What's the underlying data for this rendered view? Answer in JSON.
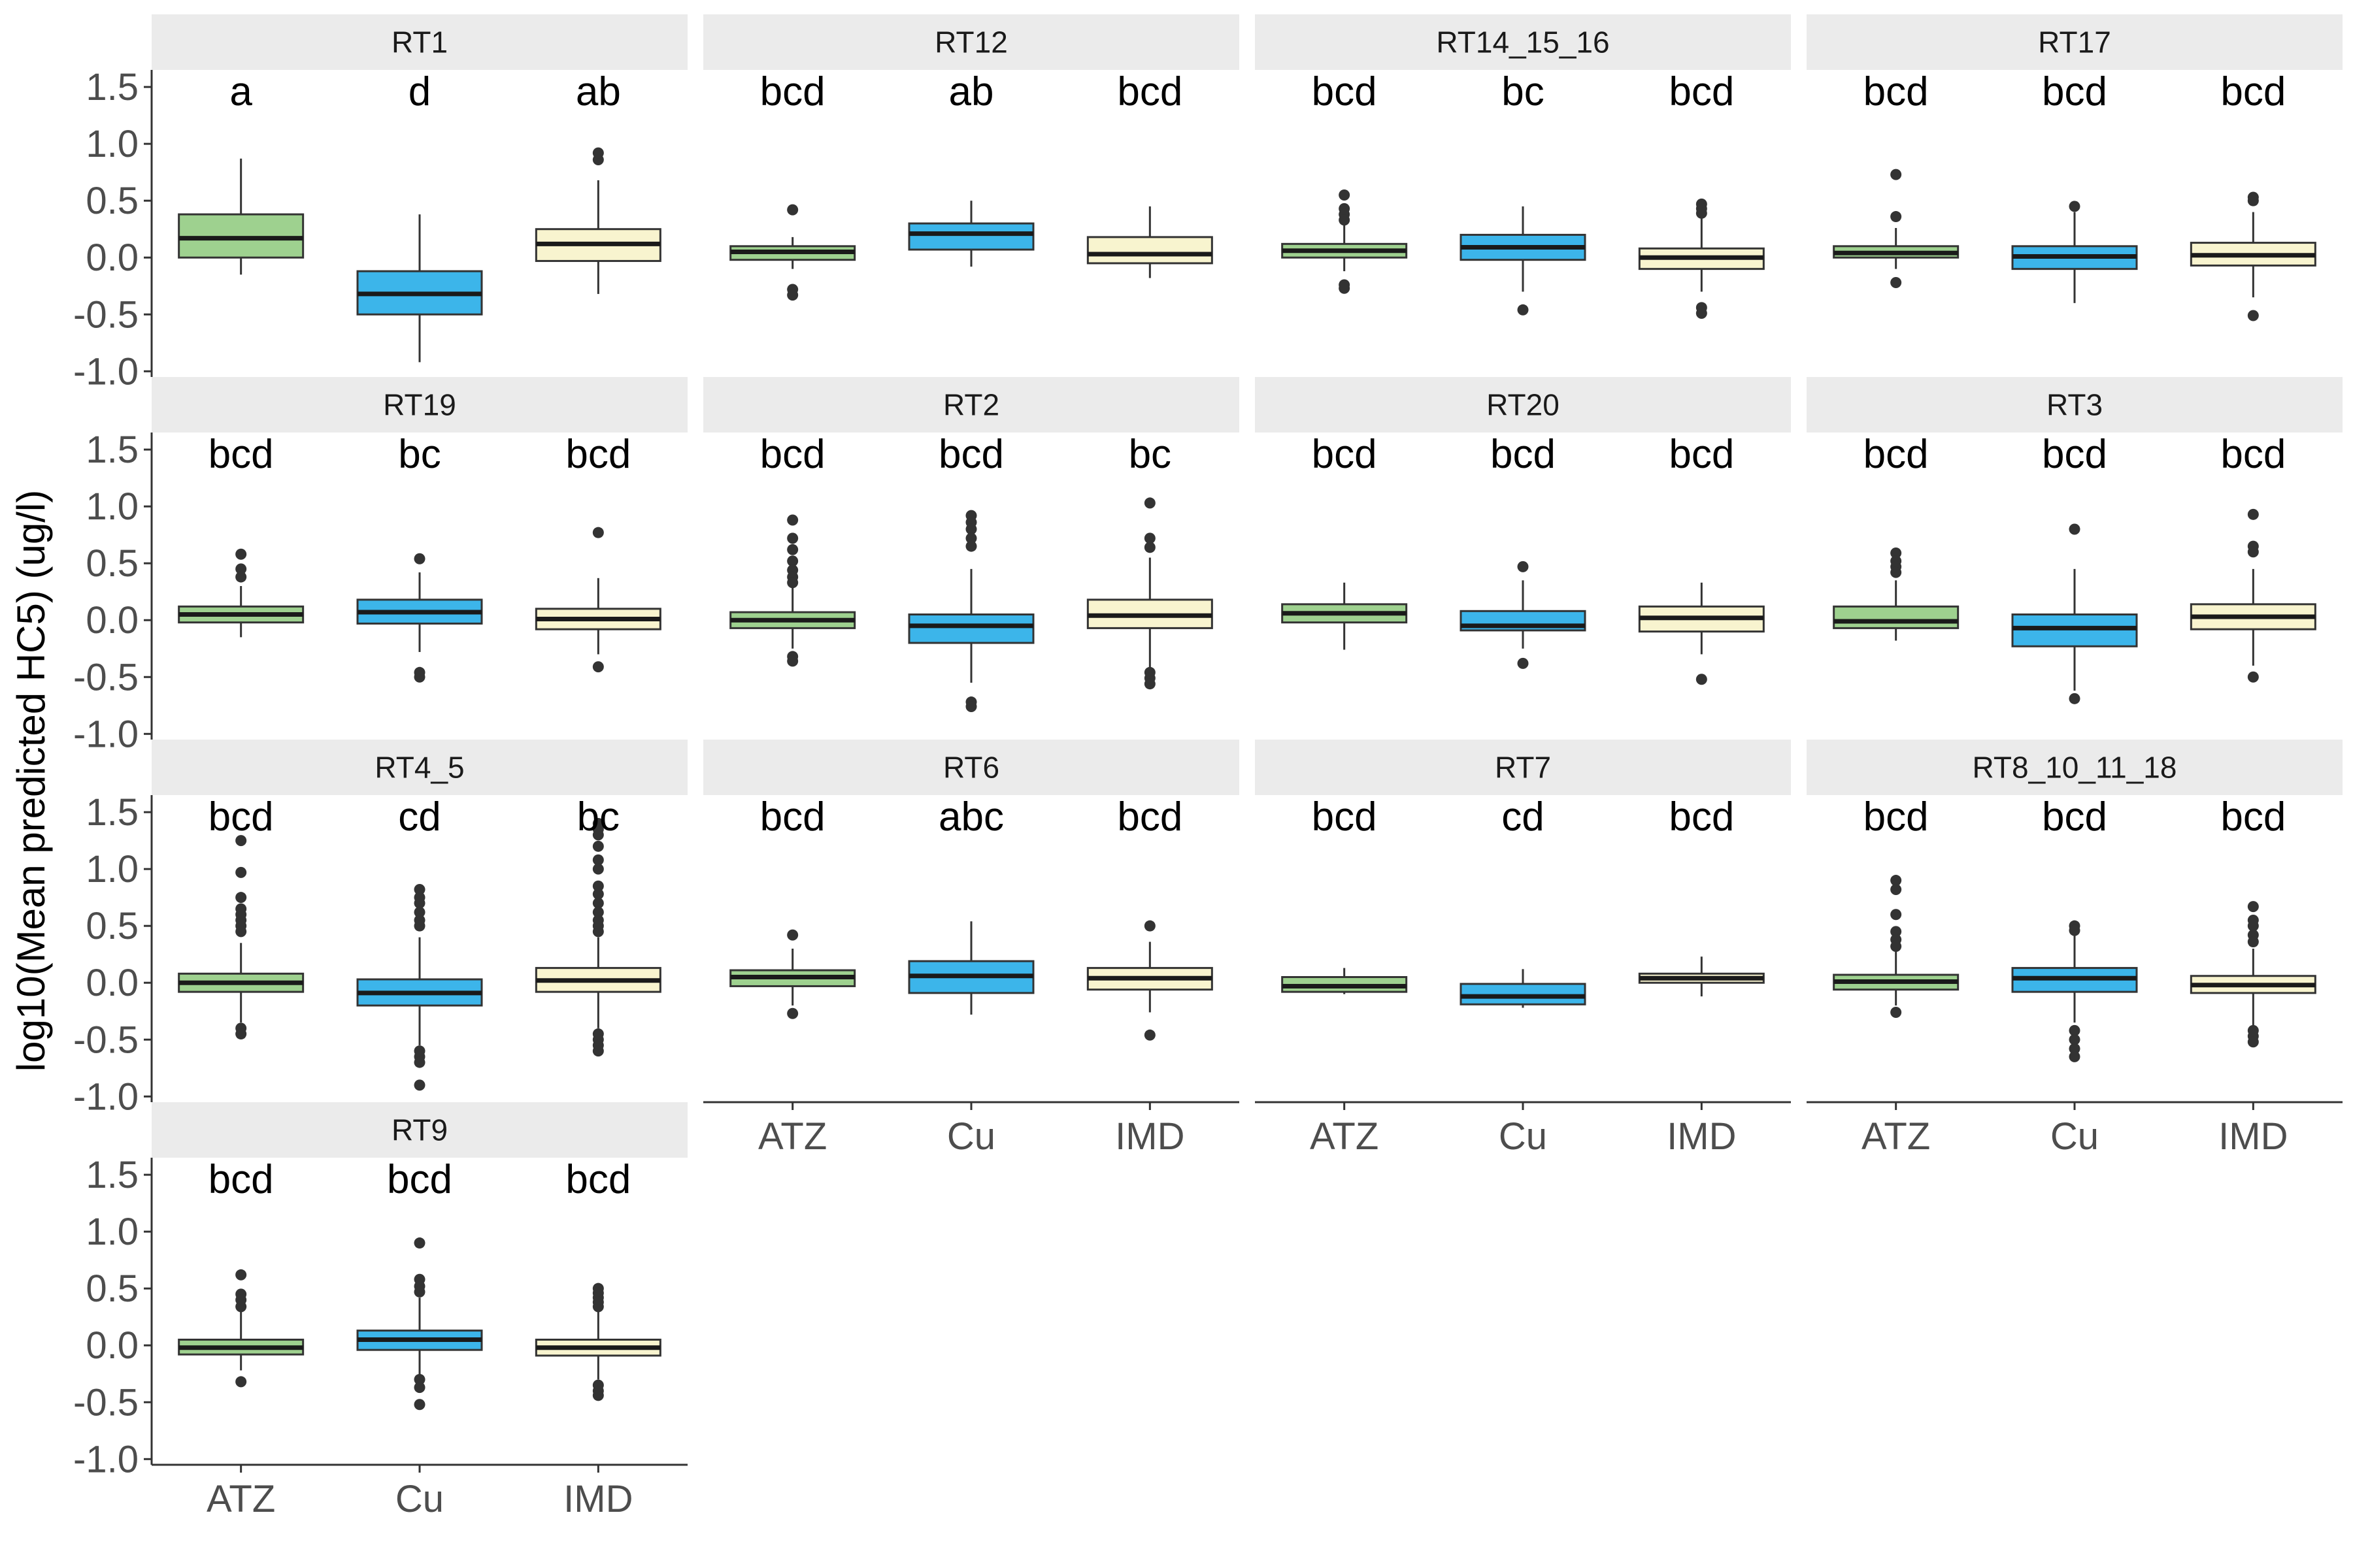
{
  "chart_data": {
    "type": "boxplot",
    "ylabel": "log10(Mean predicted HC5) (ug/l)",
    "xlabel": "",
    "categories": [
      "ATZ",
      "Cu",
      "IMD"
    ],
    "y_ticks": [
      "-1.0",
      "-0.5",
      "0.0",
      "0.5",
      "1.0",
      "1.5"
    ],
    "ylim": [
      -1.05,
      1.65
    ],
    "fill_colors": {
      "ATZ": "#9ed18f",
      "Cu": "#3cb5ea",
      "IMD": "#f8f4cf"
    },
    "panels": [
      {
        "name": "RT1",
        "letters": [
          "a",
          "d",
          "ab"
        ],
        "boxes": [
          {
            "group": "ATZ",
            "min": -0.15,
            "q1": 0.0,
            "median": 0.17,
            "q3": 0.38,
            "max": 0.87,
            "outliers": []
          },
          {
            "group": "Cu",
            "min": -0.92,
            "q1": -0.5,
            "median": -0.32,
            "q3": -0.12,
            "max": 0.38,
            "outliers": []
          },
          {
            "group": "IMD",
            "min": -0.32,
            "q1": -0.03,
            "median": 0.12,
            "q3": 0.25,
            "max": 0.68,
            "outliers": [
              0.86,
              0.92
            ]
          }
        ]
      },
      {
        "name": "RT12",
        "letters": [
          "bcd",
          "ab",
          "bcd"
        ],
        "boxes": [
          {
            "group": "ATZ",
            "min": -0.1,
            "q1": -0.02,
            "median": 0.05,
            "q3": 0.1,
            "max": 0.18,
            "outliers": [
              0.42,
              -0.28,
              -0.33
            ]
          },
          {
            "group": "Cu",
            "min": -0.08,
            "q1": 0.07,
            "median": 0.21,
            "q3": 0.3,
            "max": 0.5,
            "outliers": []
          },
          {
            "group": "IMD",
            "min": -0.18,
            "q1": -0.05,
            "median": 0.03,
            "q3": 0.18,
            "max": 0.45,
            "outliers": []
          }
        ]
      },
      {
        "name": "RT14_15_16",
        "letters": [
          "bcd",
          "bc",
          "bcd"
        ],
        "boxes": [
          {
            "group": "ATZ",
            "min": -0.12,
            "q1": 0.0,
            "median": 0.06,
            "q3": 0.12,
            "max": 0.3,
            "outliers": [
              0.55,
              0.43,
              0.38,
              0.33,
              -0.24,
              -0.27
            ]
          },
          {
            "group": "Cu",
            "min": -0.3,
            "q1": -0.02,
            "median": 0.09,
            "q3": 0.2,
            "max": 0.45,
            "outliers": [
              -0.46
            ]
          },
          {
            "group": "IMD",
            "min": -0.3,
            "q1": -0.1,
            "median": 0.0,
            "q3": 0.08,
            "max": 0.35,
            "outliers": [
              0.47,
              0.43,
              0.39,
              -0.44,
              -0.49
            ]
          }
        ]
      },
      {
        "name": "RT17",
        "letters": [
          "bcd",
          "bcd",
          "bcd"
        ],
        "boxes": [
          {
            "group": "ATZ",
            "min": -0.1,
            "q1": 0.0,
            "median": 0.04,
            "q3": 0.1,
            "max": 0.26,
            "outliers": [
              0.73,
              0.36,
              -0.22
            ]
          },
          {
            "group": "Cu",
            "min": -0.4,
            "q1": -0.1,
            "median": 0.01,
            "q3": 0.1,
            "max": 0.4,
            "outliers": [
              0.45
            ]
          },
          {
            "group": "IMD",
            "min": -0.35,
            "q1": -0.07,
            "median": 0.02,
            "q3": 0.13,
            "max": 0.4,
            "outliers": [
              0.53,
              0.5,
              -0.51
            ]
          }
        ]
      },
      {
        "name": "RT19",
        "letters": [
          "bcd",
          "bc",
          "bcd"
        ],
        "boxes": [
          {
            "group": "ATZ",
            "min": -0.15,
            "q1": -0.02,
            "median": 0.05,
            "q3": 0.12,
            "max": 0.3,
            "outliers": [
              0.58,
              0.45,
              0.38
            ]
          },
          {
            "group": "Cu",
            "min": -0.28,
            "q1": -0.03,
            "median": 0.07,
            "q3": 0.18,
            "max": 0.42,
            "outliers": [
              0.54,
              -0.46,
              -0.5
            ]
          },
          {
            "group": "IMD",
            "min": -0.3,
            "q1": -0.08,
            "median": 0.01,
            "q3": 0.1,
            "max": 0.37,
            "outliers": [
              0.77,
              -0.41
            ]
          }
        ]
      },
      {
        "name": "RT2",
        "letters": [
          "bcd",
          "bcd",
          "bc"
        ],
        "boxes": [
          {
            "group": "ATZ",
            "min": -0.25,
            "q1": -0.07,
            "median": 0.0,
            "q3": 0.07,
            "max": 0.3,
            "outliers": [
              0.88,
              0.72,
              0.62,
              0.52,
              0.44,
              0.38,
              0.33,
              -0.32,
              -0.36
            ]
          },
          {
            "group": "Cu",
            "min": -0.55,
            "q1": -0.2,
            "median": -0.05,
            "q3": 0.05,
            "max": 0.45,
            "outliers": [
              0.92,
              0.86,
              0.8,
              0.72,
              0.65,
              -0.72,
              -0.76
            ]
          },
          {
            "group": "IMD",
            "min": -0.42,
            "q1": -0.07,
            "median": 0.04,
            "q3": 0.18,
            "max": 0.55,
            "outliers": [
              1.03,
              0.72,
              0.64,
              -0.46,
              -0.51,
              -0.56
            ]
          }
        ]
      },
      {
        "name": "RT20",
        "letters": [
          "bcd",
          "bcd",
          "bcd"
        ],
        "boxes": [
          {
            "group": "ATZ",
            "min": -0.26,
            "q1": -0.02,
            "median": 0.06,
            "q3": 0.14,
            "max": 0.33,
            "outliers": []
          },
          {
            "group": "Cu",
            "min": -0.25,
            "q1": -0.09,
            "median": -0.05,
            "q3": 0.08,
            "max": 0.35,
            "outliers": [
              0.47,
              -0.38
            ]
          },
          {
            "group": "IMD",
            "min": -0.3,
            "q1": -0.1,
            "median": 0.02,
            "q3": 0.12,
            "max": 0.33,
            "outliers": [
              -0.52
            ]
          }
        ]
      },
      {
        "name": "RT3",
        "letters": [
          "bcd",
          "bcd",
          "bcd"
        ],
        "boxes": [
          {
            "group": "ATZ",
            "min": -0.18,
            "q1": -0.07,
            "median": -0.01,
            "q3": 0.12,
            "max": 0.35,
            "outliers": [
              0.59,
              0.52,
              0.47,
              0.42
            ]
          },
          {
            "group": "Cu",
            "min": -0.62,
            "q1": -0.23,
            "median": -0.07,
            "q3": 0.05,
            "max": 0.45,
            "outliers": [
              0.8,
              -0.69
            ]
          },
          {
            "group": "IMD",
            "min": -0.4,
            "q1": -0.08,
            "median": 0.03,
            "q3": 0.14,
            "max": 0.45,
            "outliers": [
              0.93,
              0.65,
              0.6,
              -0.5
            ]
          }
        ]
      },
      {
        "name": "RT4_5",
        "letters": [
          "bcd",
          "cd",
          "bc"
        ],
        "boxes": [
          {
            "group": "ATZ",
            "min": -0.35,
            "q1": -0.08,
            "median": 0.0,
            "q3": 0.08,
            "max": 0.35,
            "outliers": [
              1.25,
              0.97,
              0.75,
              0.65,
              0.6,
              0.55,
              0.5,
              0.45,
              -0.4,
              -0.45
            ]
          },
          {
            "group": "Cu",
            "min": -0.55,
            "q1": -0.2,
            "median": -0.09,
            "q3": 0.03,
            "max": 0.4,
            "outliers": [
              0.82,
              0.75,
              0.7,
              0.62,
              0.55,
              0.5,
              -0.6,
              -0.65,
              -0.7,
              -0.9
            ]
          },
          {
            "group": "IMD",
            "min": -0.4,
            "q1": -0.08,
            "median": 0.02,
            "q3": 0.13,
            "max": 0.4,
            "outliers": [
              1.4,
              1.35,
              1.3,
              1.2,
              1.08,
              1.0,
              0.85,
              0.78,
              0.7,
              0.62,
              0.55,
              0.5,
              0.45,
              -0.45,
              -0.5,
              -0.55,
              -0.6
            ]
          }
        ]
      },
      {
        "name": "RT6",
        "letters": [
          "bcd",
          "abc",
          "bcd"
        ],
        "boxes": [
          {
            "group": "ATZ",
            "min": -0.2,
            "q1": -0.03,
            "median": 0.05,
            "q3": 0.11,
            "max": 0.3,
            "outliers": [
              0.42,
              -0.27
            ]
          },
          {
            "group": "Cu",
            "min": -0.28,
            "q1": -0.09,
            "median": 0.06,
            "q3": 0.19,
            "max": 0.54,
            "outliers": []
          },
          {
            "group": "IMD",
            "min": -0.26,
            "q1": -0.06,
            "median": 0.04,
            "q3": 0.13,
            "max": 0.36,
            "outliers": [
              0.5,
              -0.46
            ]
          }
        ]
      },
      {
        "name": "RT7",
        "letters": [
          "bcd",
          "cd",
          "bcd"
        ],
        "boxes": [
          {
            "group": "ATZ",
            "min": -0.1,
            "q1": -0.08,
            "median": -0.03,
            "q3": 0.05,
            "max": 0.13,
            "outliers": []
          },
          {
            "group": "Cu",
            "min": -0.22,
            "q1": -0.19,
            "median": -0.12,
            "q3": -0.01,
            "max": 0.12,
            "outliers": []
          },
          {
            "group": "IMD",
            "min": -0.12,
            "q1": 0.0,
            "median": 0.04,
            "q3": 0.08,
            "max": 0.23,
            "outliers": []
          }
        ]
      },
      {
        "name": "RT8_10_11_18",
        "letters": [
          "bcd",
          "bcd",
          "bcd"
        ],
        "boxes": [
          {
            "group": "ATZ",
            "min": -0.2,
            "q1": -0.06,
            "median": 0.01,
            "q3": 0.07,
            "max": 0.28,
            "outliers": [
              0.9,
              0.82,
              0.6,
              0.45,
              0.38,
              0.32,
              -0.26
            ]
          },
          {
            "group": "Cu",
            "min": -0.35,
            "q1": -0.08,
            "median": 0.04,
            "q3": 0.13,
            "max": 0.42,
            "outliers": [
              0.5,
              0.46,
              -0.42,
              -0.5,
              -0.58,
              -0.65
            ]
          },
          {
            "group": "IMD",
            "min": -0.38,
            "q1": -0.09,
            "median": -0.02,
            "q3": 0.06,
            "max": 0.3,
            "outliers": [
              0.67,
              0.55,
              0.5,
              0.42,
              0.36,
              -0.42,
              -0.47,
              -0.52
            ]
          }
        ]
      },
      {
        "name": "RT9",
        "letters": [
          "bcd",
          "bcd",
          "bcd"
        ],
        "boxes": [
          {
            "group": "ATZ",
            "min": -0.22,
            "q1": -0.08,
            "median": -0.02,
            "q3": 0.05,
            "max": 0.3,
            "outliers": [
              0.62,
              0.45,
              0.4,
              0.34,
              -0.32
            ]
          },
          {
            "group": "Cu",
            "min": -0.28,
            "q1": -0.04,
            "median": 0.05,
            "q3": 0.13,
            "max": 0.42,
            "outliers": [
              0.9,
              0.58,
              0.52,
              0.47,
              -0.3,
              -0.37,
              -0.52
            ]
          },
          {
            "group": "IMD",
            "min": -0.3,
            "q1": -0.09,
            "median": -0.02,
            "q3": 0.05,
            "max": 0.3,
            "outliers": [
              0.5,
              0.46,
              0.42,
              0.38,
              0.34,
              -0.35,
              -0.4,
              -0.44
            ]
          }
        ]
      }
    ]
  }
}
